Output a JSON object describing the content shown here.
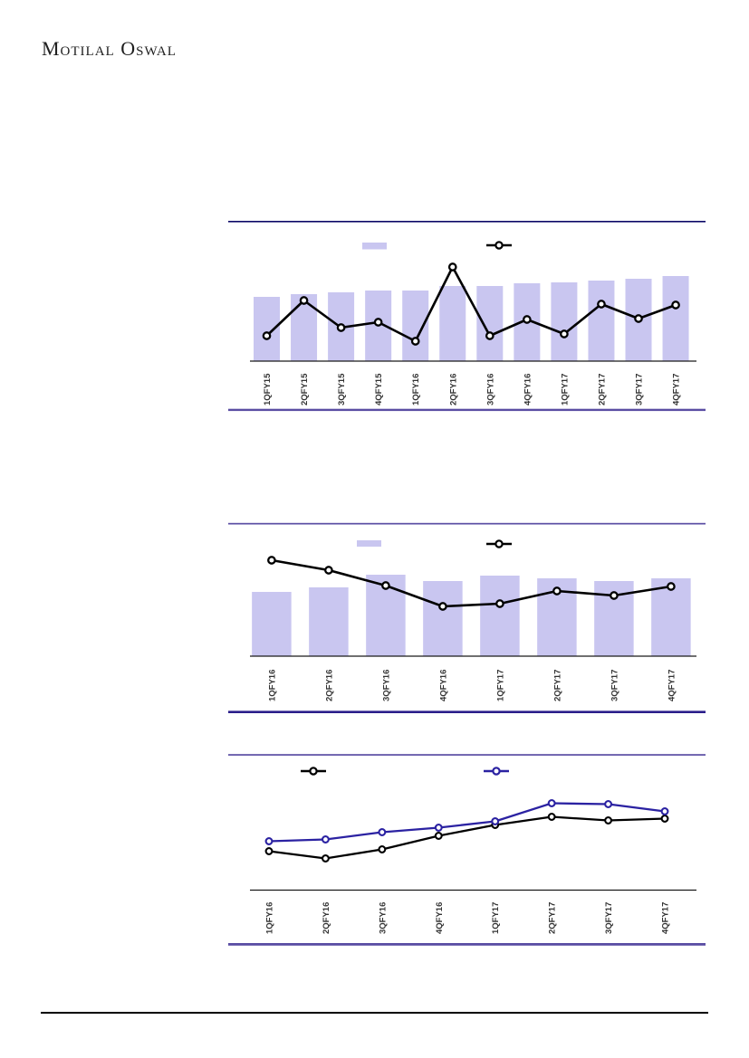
{
  "brand": {
    "logo_text": "Motilal Oswal"
  },
  "colors": {
    "bar_fill": "#c9c6f0",
    "black_line": "#000000",
    "blue_line": "#2b22a2",
    "rule_dark_navy": "#0b0766",
    "rule_purple": "#5a4da3",
    "rule_indigo": "#2a1e8a",
    "axis": "#1a1a1a",
    "label": "#333333",
    "marker_fill": "#ffffff",
    "footer_rule": "#000000"
  },
  "chart_data": [
    {
      "id": "quarterly-bar-line-fy15-fy17",
      "type": "bar",
      "title": "",
      "xlabel": "",
      "ylabel": "",
      "grid": false,
      "yaxis_labels_visible": false,
      "legend_position": "top",
      "legend": [
        {
          "swatch": "bar",
          "label": ""
        },
        {
          "swatch": "line-marker",
          "label": ""
        }
      ],
      "categories": [
        "1QFY15",
        "2QFY15",
        "3QFY15",
        "4QFY15",
        "1QFY16",
        "2QFY16",
        "3QFY16",
        "4QFY16",
        "1QFY17",
        "2QFY17",
        "3QFY17",
        "4QFY17"
      ],
      "series": [
        {
          "name": "bars",
          "kind": "bar",
          "color_key": "bar_fill",
          "values": [
            71,
            74,
            76,
            78,
            78,
            83,
            83,
            86,
            87,
            89,
            91,
            94
          ]
        },
        {
          "name": "line",
          "kind": "line",
          "color_key": "black_line",
          "values": [
            28,
            67,
            37,
            43,
            22,
            104,
            28,
            46,
            30,
            63,
            47,
            62
          ]
        }
      ],
      "ylim": [
        0,
        115
      ]
    },
    {
      "id": "quarterly-bar-line-fy16-fy17",
      "type": "bar",
      "title": "",
      "xlabel": "",
      "ylabel": "",
      "grid": false,
      "yaxis_labels_visible": false,
      "legend_position": "top",
      "legend": [
        {
          "swatch": "bar",
          "label": ""
        },
        {
          "swatch": "line-marker",
          "label": ""
        }
      ],
      "categories": [
        "1QFY16",
        "2QFY16",
        "3QFY16",
        "4QFY16",
        "1QFY17",
        "2QFY17",
        "3QFY17",
        "4QFY17"
      ],
      "series": [
        {
          "name": "bars",
          "kind": "bar",
          "color_key": "bar_fill",
          "values": [
            71,
            76,
            90,
            83,
            89,
            86,
            83,
            86
          ]
        },
        {
          "name": "line",
          "kind": "line",
          "color_key": "black_line",
          "values": [
            106,
            95,
            78,
            55,
            58,
            72,
            67,
            77
          ]
        }
      ],
      "ylim": [
        0,
        115
      ]
    },
    {
      "id": "dual-line-quarterly-fy16-fy17",
      "type": "line",
      "title": "",
      "xlabel": "",
      "ylabel": "",
      "grid": false,
      "yaxis_labels_visible": false,
      "legend_position": "top",
      "legend": [
        {
          "swatch": "line-marker-black",
          "label": ""
        },
        {
          "swatch": "line-marker-blue",
          "label": ""
        }
      ],
      "categories": [
        "1QFY16",
        "2QFY16",
        "3QFY16",
        "4QFY16",
        "1QFY17",
        "2QFY17",
        "3QFY17",
        "4QFY17"
      ],
      "series": [
        {
          "name": "black-line",
          "kind": "line",
          "color_key": "black_line",
          "values": [
            43,
            35,
            45,
            60,
            72,
            81,
            77,
            79
          ]
        },
        {
          "name": "blue-line",
          "kind": "line",
          "color_key": "blue_line",
          "values": [
            54,
            56,
            64,
            69,
            76,
            96,
            95,
            87
          ]
        }
      ],
      "ylim": [
        0,
        110
      ]
    }
  ]
}
